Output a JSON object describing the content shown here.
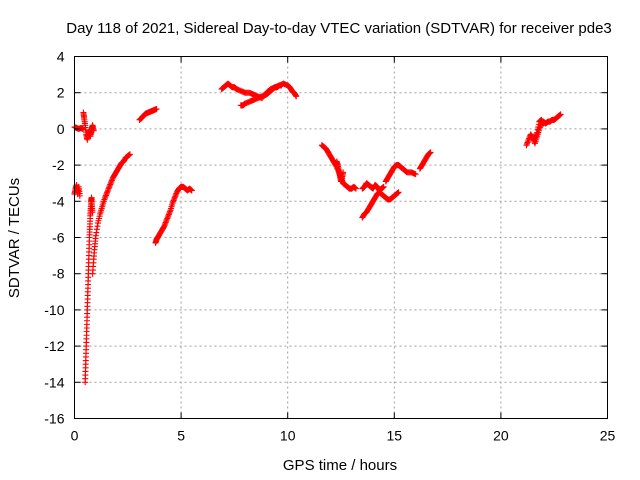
{
  "chart_data": {
    "type": "scatter",
    "title": "Day 118 of 2021, Sidereal Day-to-day VTEC variation (SDTVAR) for receiver pde3",
    "xlabel": "GPS time / hours",
    "ylabel": "SDTVAR / TECUs",
    "xlim": [
      0,
      25
    ],
    "ylim": [
      -16,
      4
    ],
    "xticks": [
      "0",
      "5",
      "10",
      "15",
      "20",
      "25"
    ],
    "yticks": [
      "4",
      "2",
      "0",
      "-2",
      "-4",
      "-6",
      "-8",
      "-10",
      "-12",
      "-14",
      "-16"
    ],
    "grid": true,
    "marker": "+",
    "color": "#ff0000",
    "series": [
      {
        "name": "s1",
        "x": [
          0.0,
          0.05,
          0.1,
          0.15,
          0.2,
          0.25
        ],
        "y": [
          -3.6,
          -3.3,
          -3.1,
          -3.6,
          -3.2,
          -3.7
        ]
      },
      {
        "name": "s2",
        "x": [
          0.0,
          0.1,
          0.2,
          0.3,
          0.4
        ],
        "y": [
          0.1,
          0.05,
          0.0,
          0.05,
          0.0
        ]
      },
      {
        "name": "s3",
        "x": [
          0.42,
          0.45,
          0.5,
          0.55,
          0.6,
          0.65,
          0.7,
          0.75,
          0.8,
          0.85,
          0.9
        ],
        "y": [
          0.9,
          0.6,
          0.2,
          -0.3,
          -0.6,
          -0.3,
          -0.1,
          -0.4,
          0.0,
          0.2,
          -0.1
        ]
      },
      {
        "name": "s4",
        "x": [
          0.5,
          0.52,
          0.54,
          0.56,
          0.58,
          0.6,
          0.62,
          0.64,
          0.66,
          0.68,
          0.7,
          0.72,
          0.74,
          0.76,
          0.78,
          0.8,
          0.82,
          0.84
        ],
        "y": [
          -14.0,
          -13.2,
          -12.4,
          -11.6,
          -10.8,
          -10.0,
          -9.2,
          -8.4,
          -7.6,
          -6.8,
          -6.0,
          -5.4,
          -4.8,
          -4.4,
          -4.0,
          -3.8,
          -4.2,
          -4.6
        ]
      },
      {
        "name": "s5",
        "x": [
          0.85,
          0.9,
          0.95,
          1.0,
          1.1,
          1.2,
          1.3,
          1.4,
          1.5,
          1.6,
          1.7,
          1.8,
          1.9,
          2.0,
          2.1,
          2.2,
          2.3,
          2.4,
          2.5,
          2.6
        ],
        "y": [
          -8.0,
          -7.2,
          -6.5,
          -5.9,
          -5.2,
          -4.7,
          -4.3,
          -3.9,
          -3.6,
          -3.3,
          -3.0,
          -2.7,
          -2.5,
          -2.3,
          -2.1,
          -1.9,
          -1.8,
          -1.6,
          -1.5,
          -1.4
        ]
      },
      {
        "name": "s6",
        "x": [
          3.05,
          3.15,
          3.25,
          3.35,
          3.45,
          3.55,
          3.65,
          3.75,
          3.85
        ],
        "y": [
          0.5,
          0.6,
          0.75,
          0.85,
          0.9,
          0.95,
          1.0,
          1.05,
          1.1
        ]
      },
      {
        "name": "s7",
        "x": [
          3.8,
          3.85,
          3.9,
          4.0,
          4.1,
          4.2,
          4.3,
          4.4,
          4.5,
          4.6,
          4.7,
          4.8,
          4.9,
          5.0,
          5.1,
          5.2,
          5.3,
          5.4,
          5.5
        ],
        "y": [
          -6.3,
          -6.1,
          -6.0,
          -5.8,
          -5.6,
          -5.4,
          -5.1,
          -4.8,
          -4.5,
          -4.1,
          -3.8,
          -3.5,
          -3.3,
          -3.2,
          -3.2,
          -3.3,
          -3.4,
          -3.3,
          -3.4
        ]
      },
      {
        "name": "s8",
        "x": [
          6.9,
          7.0,
          7.1,
          7.2,
          7.3,
          7.4,
          7.5,
          7.6,
          7.8,
          8.0,
          8.2,
          8.4,
          8.6,
          8.8,
          9.0,
          9.2,
          9.4,
          9.6,
          9.8,
          10.0,
          10.1,
          10.2,
          10.3,
          10.4
        ],
        "y": [
          2.2,
          2.3,
          2.4,
          2.5,
          2.4,
          2.3,
          2.3,
          2.2,
          2.1,
          2.0,
          2.0,
          1.9,
          1.8,
          1.7,
          2.0,
          2.2,
          2.3,
          2.4,
          2.5,
          2.4,
          2.3,
          2.1,
          2.0,
          1.8
        ]
      },
      {
        "name": "s9",
        "x": [
          7.8,
          7.9,
          8.0,
          8.2,
          8.4,
          8.6,
          8.8,
          9.0,
          9.1,
          9.2,
          9.3,
          9.4,
          9.5,
          9.6,
          9.7
        ],
        "y": [
          1.3,
          1.3,
          1.4,
          1.5,
          1.6,
          1.7,
          1.8,
          1.9,
          2.0,
          2.1,
          2.2,
          2.3,
          2.3,
          2.4,
          2.4
        ]
      },
      {
        "name": "s10",
        "x": [
          11.6,
          11.7,
          11.8,
          11.9,
          12.0,
          12.1,
          12.2,
          12.3,
          12.4,
          12.5,
          12.6,
          12.7,
          12.8,
          12.9,
          13.0,
          13.1,
          13.2
        ],
        "y": [
          -0.9,
          -1.0,
          -1.1,
          -1.3,
          -1.5,
          -1.7,
          -1.9,
          -2.1,
          -2.4,
          -2.7,
          -3.0,
          -3.1,
          -3.2,
          -3.3,
          -3.3,
          -3.2,
          -3.3
        ]
      },
      {
        "name": "s11",
        "x": [
          12.3,
          12.35,
          12.4,
          12.45,
          12.5,
          12.55,
          12.6
        ],
        "y": [
          -1.8,
          -2.0,
          -2.3,
          -2.6,
          -2.9,
          -2.7,
          -2.4
        ]
      },
      {
        "name": "s12",
        "x": [
          13.5,
          13.6,
          13.7,
          13.8,
          13.9,
          14.0,
          14.1,
          14.2,
          14.3,
          14.4,
          14.5,
          14.6,
          14.7,
          14.8,
          14.9,
          15.0,
          15.1,
          15.2
        ],
        "y": [
          -4.9,
          -4.7,
          -4.6,
          -4.4,
          -4.2,
          -4.0,
          -3.8,
          -3.6,
          -3.5,
          -3.6,
          -3.7,
          -3.8,
          -3.9,
          -3.9,
          -3.8,
          -3.7,
          -3.6,
          -3.5
        ]
      },
      {
        "name": "s13",
        "x": [
          13.5,
          13.6,
          13.7,
          13.8,
          13.9,
          14.0,
          14.1,
          14.2,
          14.3,
          14.4,
          14.5
        ],
        "y": [
          -3.3,
          -3.2,
          -3.0,
          -3.1,
          -3.2,
          -3.3,
          -3.1,
          -3.2,
          -3.4,
          -3.3,
          -3.2
        ]
      },
      {
        "name": "s14",
        "x": [
          14.6,
          14.7,
          14.8,
          14.9,
          15.0,
          15.1,
          15.2,
          15.3,
          15.4,
          15.5,
          15.6,
          15.8,
          16.0
        ],
        "y": [
          -2.9,
          -2.7,
          -2.5,
          -2.3,
          -2.1,
          -2.0,
          -2.0,
          -2.1,
          -2.2,
          -2.3,
          -2.4,
          -2.4,
          -2.5
        ]
      },
      {
        "name": "s15",
        "x": [
          16.2,
          16.3,
          16.4,
          16.5,
          16.6,
          16.7
        ],
        "y": [
          -2.2,
          -2.0,
          -1.8,
          -1.6,
          -1.4,
          -1.3
        ]
      },
      {
        "name": "s16",
        "x": [
          21.2,
          21.3,
          21.4,
          21.5,
          21.6,
          21.7,
          21.8,
          21.9,
          22.0,
          22.1,
          22.2,
          22.3,
          22.4,
          22.5,
          22.6,
          22.7,
          22.8
        ],
        "y": [
          -0.9,
          -0.6,
          -0.3,
          -0.5,
          -0.8,
          -0.4,
          0.0,
          0.3,
          0.4,
          0.3,
          0.4,
          0.4,
          0.5,
          0.5,
          0.6,
          0.7,
          0.8
        ]
      },
      {
        "name": "s17",
        "x": [
          21.6,
          21.7,
          21.8,
          21.9,
          22.0
        ],
        "y": [
          -0.5,
          -0.2,
          0.4,
          0.5,
          0.3
        ]
      }
    ]
  }
}
